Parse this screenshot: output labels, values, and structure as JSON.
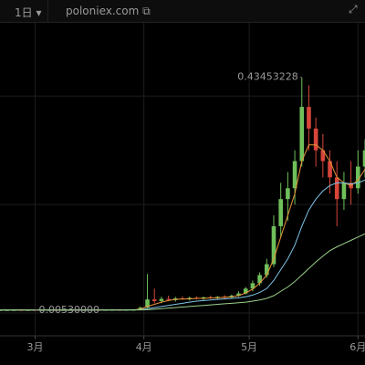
{
  "header": {
    "interval": "1日",
    "site": "poloniex.com"
  },
  "chart_data": {
    "type": "candlestick",
    "x": [
      -10,
      -8,
      -6,
      -4,
      -2,
      0,
      2,
      4,
      6,
      8,
      10,
      12,
      14,
      16,
      18,
      20,
      22,
      24,
      26,
      28,
      30,
      32,
      34,
      36,
      38,
      40,
      42,
      44,
      46,
      48,
      50,
      52,
      54,
      56,
      58,
      60,
      62,
      64,
      66,
      68,
      70,
      72,
      74,
      76,
      78,
      80,
      82,
      84,
      86,
      88,
      90,
      92,
      94
    ],
    "open": [
      0.0054,
      0.0055,
      0.0055,
      0.0056,
      0.0055,
      0.0056,
      0.0054,
      0.0055,
      0.0056,
      0.0055,
      0.0056,
      0.0057,
      0.0056,
      0.0057,
      0.0058,
      0.0057,
      0.0058,
      0.0059,
      0.0058,
      0.0059,
      0.006,
      0.01,
      0.025,
      0.022,
      0.026,
      0.024,
      0.027,
      0.026,
      0.028,
      0.027,
      0.029,
      0.028,
      0.03,
      0.029,
      0.032,
      0.036,
      0.045,
      0.055,
      0.07,
      0.09,
      0.16,
      0.21,
      0.23,
      0.28,
      0.38,
      0.34,
      0.3,
      0.28,
      0.25,
      0.21,
      0.24,
      0.23,
      0.27
    ],
    "high": [
      0.0058,
      0.0058,
      0.0059,
      0.0059,
      0.0058,
      0.0059,
      0.0058,
      0.0059,
      0.0059,
      0.006,
      0.006,
      0.0061,
      0.006,
      0.0061,
      0.0062,
      0.0061,
      0.0062,
      0.0063,
      0.0062,
      0.0063,
      0.012,
      0.072,
      0.045,
      0.03,
      0.032,
      0.03,
      0.031,
      0.03,
      0.031,
      0.03,
      0.032,
      0.031,
      0.033,
      0.034,
      0.04,
      0.048,
      0.06,
      0.075,
      0.1,
      0.18,
      0.24,
      0.26,
      0.3,
      0.43453228,
      0.42,
      0.36,
      0.33,
      0.3,
      0.28,
      0.26,
      0.28,
      0.3,
      0.32
    ],
    "low": [
      0.0054,
      0.0054,
      0.0054,
      0.0054,
      0.0054,
      0.0053,
      0.0054,
      0.0054,
      0.0054,
      0.0054,
      0.0054,
      0.0055,
      0.0055,
      0.0055,
      0.0056,
      0.0056,
      0.0056,
      0.0057,
      0.0057,
      0.0057,
      0.006,
      0.009,
      0.018,
      0.018,
      0.022,
      0.021,
      0.024,
      0.023,
      0.025,
      0.024,
      0.026,
      0.025,
      0.026,
      0.027,
      0.03,
      0.034,
      0.04,
      0.05,
      0.065,
      0.085,
      0.14,
      0.17,
      0.2,
      0.27,
      0.3,
      0.27,
      0.25,
      0.22,
      0.16,
      0.19,
      0.2,
      0.22,
      0.25
    ],
    "close": [
      0.0055,
      0.0055,
      0.0056,
      0.0055,
      0.0056,
      0.0054,
      0.0055,
      0.0056,
      0.0055,
      0.0056,
      0.0057,
      0.0056,
      0.0057,
      0.0058,
      0.0057,
      0.0058,
      0.0059,
      0.0058,
      0.0059,
      0.006,
      0.01,
      0.025,
      0.022,
      0.026,
      0.024,
      0.027,
      0.026,
      0.028,
      0.027,
      0.029,
      0.028,
      0.03,
      0.029,
      0.032,
      0.036,
      0.045,
      0.055,
      0.07,
      0.09,
      0.16,
      0.21,
      0.23,
      0.28,
      0.38,
      0.34,
      0.3,
      0.28,
      0.25,
      0.21,
      0.24,
      0.23,
      0.27,
      0.3
    ],
    "up_color": "#6fbf5a",
    "down_color": "#d8453a",
    "lines": [
      {
        "color": "#e8953a",
        "values": [
          0.0055,
          0.0055,
          0.0055,
          0.0055,
          0.0055,
          0.0055,
          0.0055,
          0.0055,
          0.0055,
          0.0055,
          0.0055,
          0.0055,
          0.0056,
          0.0056,
          0.0057,
          0.0057,
          0.0058,
          0.0058,
          0.0058,
          0.0059,
          0.007,
          0.012,
          0.016,
          0.02,
          0.023,
          0.025,
          0.026,
          0.026,
          0.027,
          0.027,
          0.028,
          0.028,
          0.029,
          0.03,
          0.032,
          0.037,
          0.044,
          0.055,
          0.07,
          0.1,
          0.14,
          0.18,
          0.22,
          0.28,
          0.31,
          0.31,
          0.3,
          0.28,
          0.25,
          0.24,
          0.235,
          0.245,
          0.265
        ]
      },
      {
        "color": "#7fc4e8",
        "values": [
          0.0055,
          0.0055,
          0.0055,
          0.0055,
          0.0055,
          0.0055,
          0.0055,
          0.0055,
          0.0055,
          0.0055,
          0.0055,
          0.0055,
          0.0055,
          0.0056,
          0.0056,
          0.0056,
          0.0057,
          0.0057,
          0.0057,
          0.0058,
          0.006,
          0.008,
          0.01,
          0.012,
          0.014,
          0.016,
          0.018,
          0.02,
          0.022,
          0.023,
          0.024,
          0.025,
          0.026,
          0.027,
          0.028,
          0.03,
          0.033,
          0.038,
          0.045,
          0.06,
          0.08,
          0.1,
          0.125,
          0.16,
          0.19,
          0.21,
          0.225,
          0.235,
          0.24,
          0.24,
          0.238,
          0.24,
          0.245
        ]
      },
      {
        "color": "#9ad08a",
        "values": [
          0.0055,
          0.0055,
          0.0055,
          0.0055,
          0.0055,
          0.0055,
          0.0055,
          0.0055,
          0.0055,
          0.0055,
          0.0055,
          0.0055,
          0.0055,
          0.0055,
          0.0055,
          0.0056,
          0.0056,
          0.0056,
          0.0056,
          0.0057,
          0.0058,
          0.006,
          0.007,
          0.008,
          0.009,
          0.01,
          0.011,
          0.012,
          0.013,
          0.014,
          0.015,
          0.016,
          0.017,
          0.018,
          0.019,
          0.02,
          0.022,
          0.024,
          0.027,
          0.032,
          0.04,
          0.048,
          0.058,
          0.07,
          0.082,
          0.094,
          0.105,
          0.115,
          0.122,
          0.128,
          0.134,
          0.14,
          0.146
        ]
      }
    ],
    "annotations": [
      {
        "value": 0.43453228,
        "label": "0.43453228"
      },
      {
        "value": 0.0053,
        "label": "0.00530000"
      }
    ],
    "xlim": [
      -10,
      94
    ],
    "xticks": [
      {
        "value": 0,
        "label": "3月"
      },
      {
        "value": 31,
        "label": "4月"
      },
      {
        "value": 61,
        "label": "5月"
      },
      {
        "value": 92,
        "label": "6月"
      }
    ],
    "ylim": [
      -0.042,
      0.535
    ],
    "yticks": [
      0,
      0.2,
      0.4
    ],
    "grid": true
  }
}
